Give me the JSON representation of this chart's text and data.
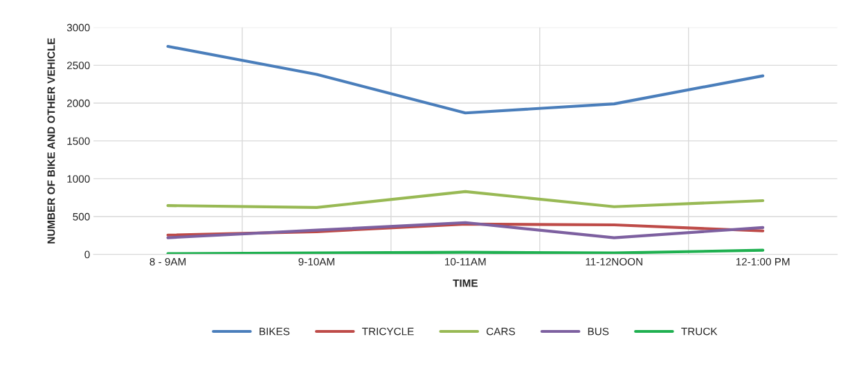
{
  "chart_data": {
    "type": "line",
    "xlabel": "TIME",
    "ylabel": "NUMBER OF BIKE AND OTHER VEHICLE",
    "categories": [
      "8 - 9AM",
      "9-10AM",
      "10-11AM",
      "11-12NOON",
      "12-1:00 PM"
    ],
    "series": [
      {
        "name": "BIKES",
        "color": "#4a7ebb",
        "values": [
          2750,
          2380,
          1870,
          1990,
          2360
        ]
      },
      {
        "name": "TRICYCLE",
        "color": "#be4b48",
        "values": [
          255,
          300,
          400,
          390,
          310
        ]
      },
      {
        "name": "CARS",
        "color": "#98b954",
        "values": [
          645,
          620,
          830,
          630,
          710
        ]
      },
      {
        "name": "BUS",
        "color": "#7d60a0",
        "values": [
          220,
          320,
          420,
          220,
          355
        ]
      },
      {
        "name": "TRUCK",
        "color": "#1fb050",
        "values": [
          10,
          18,
          27,
          18,
          55
        ]
      }
    ],
    "ylim": [
      0,
      3000
    ],
    "yticks": [
      0,
      500,
      1000,
      1500,
      2000,
      2500,
      3000
    ],
    "grid": true,
    "legend": "bottom",
    "marker": "none",
    "line_style": "solid"
  }
}
